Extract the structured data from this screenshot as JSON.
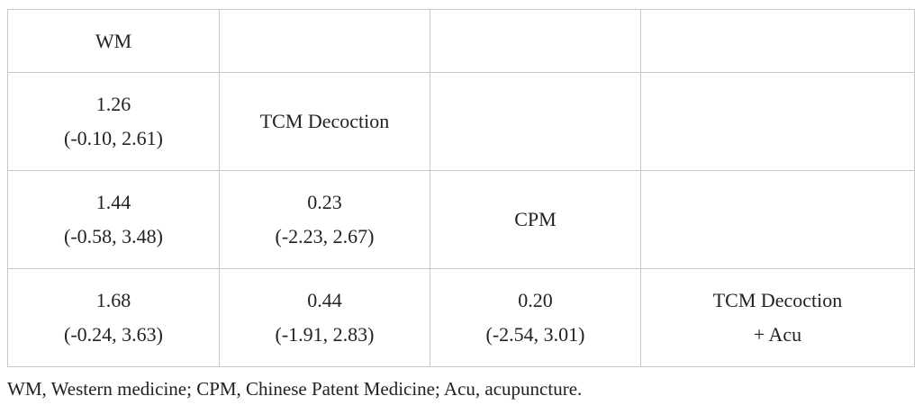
{
  "table": {
    "rows": [
      [
        [
          "WM"
        ],
        null,
        null,
        null
      ],
      [
        [
          "1.26",
          "(-0.10, 2.61)"
        ],
        [
          "TCM Decoction"
        ],
        null,
        null
      ],
      [
        [
          "1.44",
          "(-0.58, 3.48)"
        ],
        [
          "0.23",
          "(-2.23, 2.67)"
        ],
        [
          "CPM"
        ],
        null
      ],
      [
        [
          "1.68",
          "(-0.24, 3.63)"
        ],
        [
          "0.44",
          "(-1.91, 2.83)"
        ],
        [
          "0.20",
          "(-2.54, 3.01)"
        ],
        [
          "TCM Decoction",
          "+ Acu"
        ]
      ]
    ]
  },
  "footnote": "WM, Western medicine; CPM, Chinese Patent Medicine; Acu, acupuncture."
}
